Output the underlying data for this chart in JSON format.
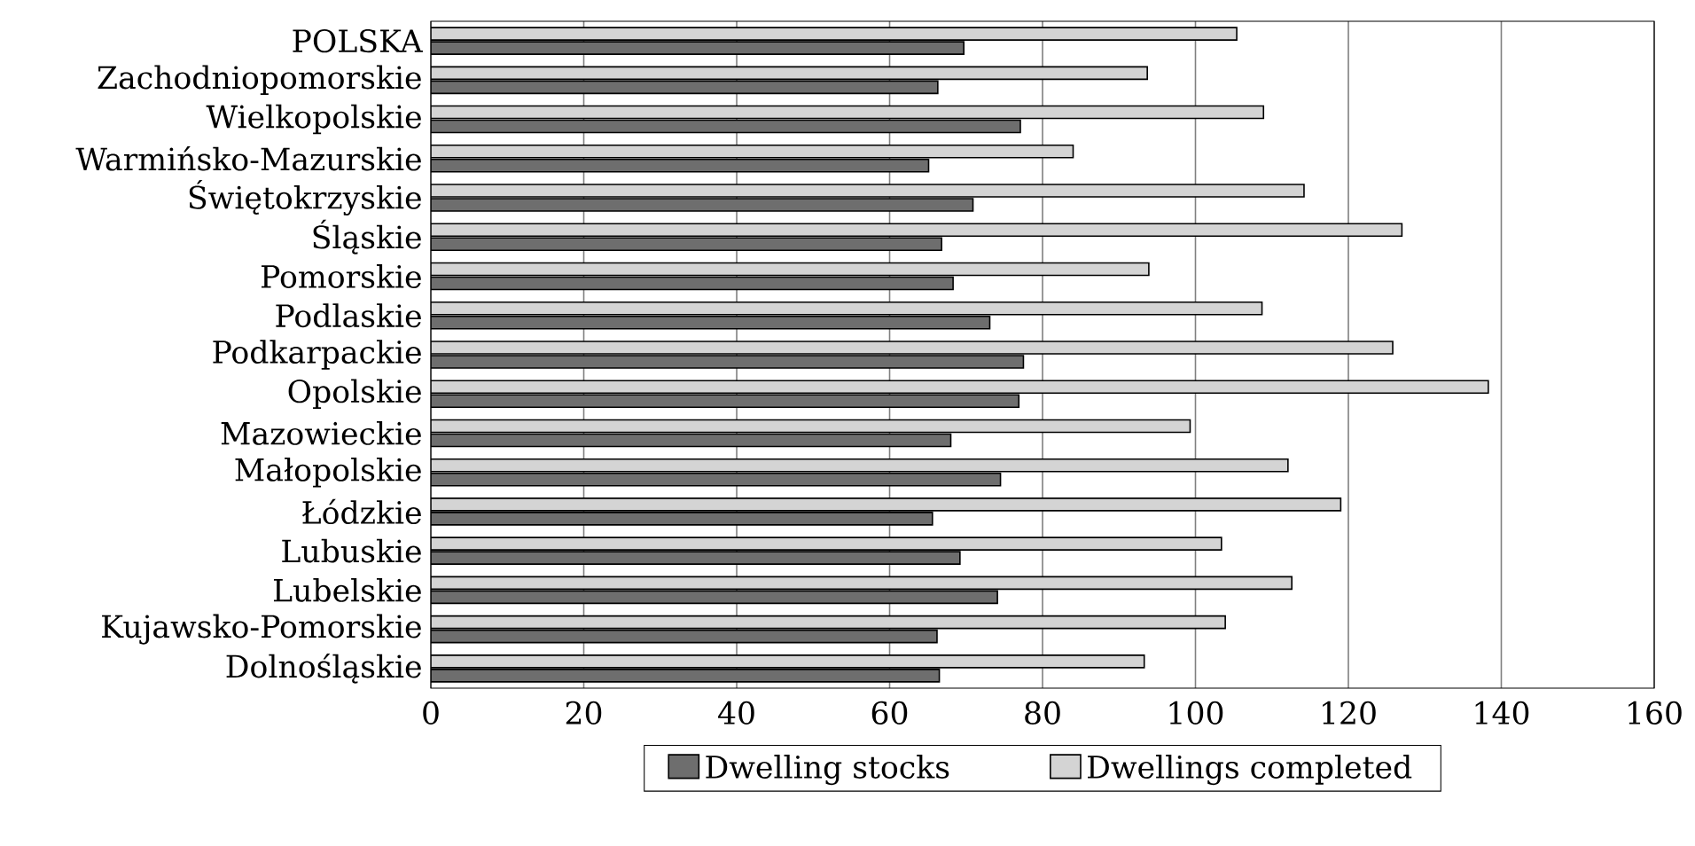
{
  "chart_data": {
    "type": "bar",
    "orientation": "horizontal",
    "categories": [
      "POLSKA",
      "Zachodniopomorskie",
      "Wielkopolskie",
      "Warmińsko-Mazurskie",
      "Świętokrzyskie",
      "Śląskie",
      "Pomorskie",
      "Podlaskie",
      "Podkarpackie",
      "Opolskie",
      "Mazowieckie",
      "Małopolskie",
      "Łódzkie",
      "Lubuskie",
      "Lubelskie",
      "Kujawsko-Pomorskie",
      "Dolnośląskie"
    ],
    "series": [
      {
        "name": "Dwelling stocks",
        "color": "#6e6e6e",
        "values": [
          69.7,
          66.3,
          77.1,
          65.1,
          70.9,
          66.8,
          68.3,
          73.1,
          77.5,
          76.9,
          68.0,
          74.5,
          65.6,
          69.2,
          74.1,
          66.2,
          66.5
        ]
      },
      {
        "name": "Dwellings completed",
        "color": "#d4d4d4",
        "values": [
          105.4,
          93.7,
          108.9,
          84.0,
          114.2,
          127.0,
          93.9,
          108.7,
          125.8,
          138.3,
          99.3,
          112.1,
          119.0,
          103.4,
          112.6,
          103.9,
          93.3
        ]
      }
    ],
    "xlim": [
      0,
      160
    ],
    "xticks": [
      0,
      20,
      40,
      60,
      80,
      100,
      120,
      140,
      160
    ],
    "grid": "x",
    "legend": "bottom"
  }
}
